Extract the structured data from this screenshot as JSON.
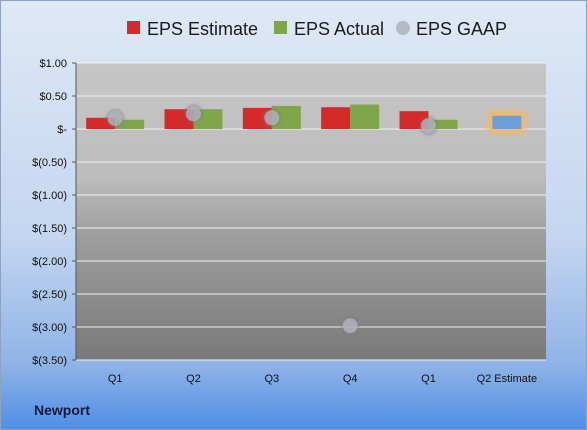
{
  "company": "Newport",
  "colors": {
    "estimate": "#d42a2a",
    "actual": "#7fa64a",
    "gaap": "#b5b9c2",
    "future_estimate": "#6f9fd8",
    "future_glow": "#f5b860"
  },
  "chart_data": {
    "type": "bar",
    "categories": [
      "Q1",
      "Q2",
      "Q3",
      "Q4",
      "Q1",
      "Q2 Estimate"
    ],
    "series": [
      {
        "name": "EPS Estimate",
        "kind": "bar",
        "values": [
          0.17,
          0.3,
          0.32,
          0.33,
          0.27,
          0.2
        ]
      },
      {
        "name": "EPS Actual",
        "kind": "bar",
        "values": [
          0.14,
          0.3,
          0.35,
          0.37,
          0.14,
          null
        ]
      },
      {
        "name": "EPS GAAP",
        "kind": "scatter",
        "values": [
          0.16,
          0.23,
          0.17,
          -2.98,
          0.05,
          null
        ]
      }
    ],
    "legend": [
      "EPS Estimate",
      "EPS Actual",
      "EPS GAAP"
    ],
    "legend_position": "top",
    "ylim": [
      -3.5,
      1.0
    ],
    "yticks": [
      1.0,
      0.5,
      0,
      -0.5,
      -1.0,
      -1.5,
      -2.0,
      -2.5,
      -3.0,
      -3.5
    ],
    "ytick_labels": [
      "$1.00",
      "$0.50",
      "$-",
      "$(0.50)",
      "$(1.00)",
      "$(1.50)",
      "$(2.00)",
      "$(2.50)",
      "$(3.00)",
      "$(3.50)"
    ],
    "grid": true,
    "title": "",
    "xlabel": "",
    "ylabel": ""
  }
}
